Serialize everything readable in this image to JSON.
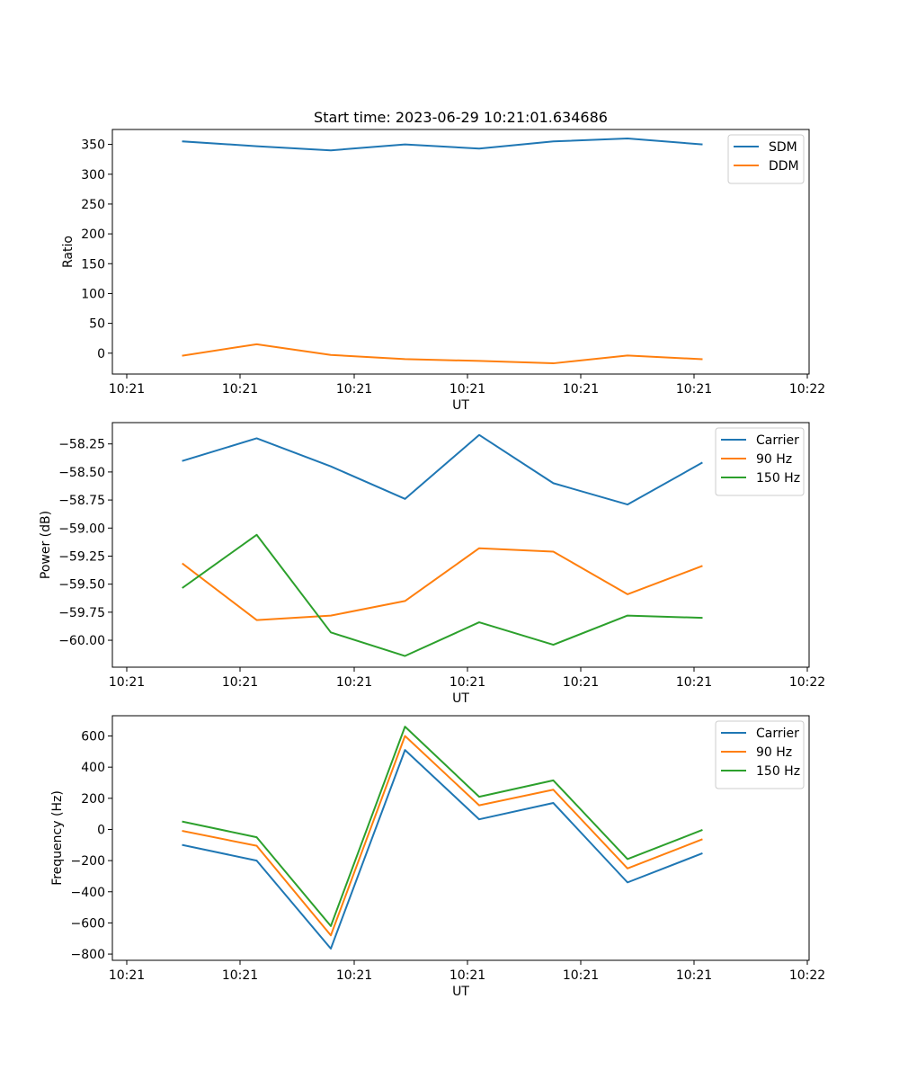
{
  "figure": {
    "title": "Start time: 2023-06-29 10:21:01.634686"
  },
  "colors": {
    "blue": "#1f77b4",
    "orange": "#ff7f0e",
    "green": "#2ca02c"
  },
  "chart_data": [
    {
      "type": "line",
      "title": "Start time: 2023-06-29 10:21:01.634686",
      "xlabel": "UT",
      "ylabel": "Ratio",
      "x_ticks": [
        "10:21",
        "10:21",
        "10:21",
        "10:21",
        "10:21",
        "10:21",
        "10:22"
      ],
      "ylim": [
        -35,
        375
      ],
      "yticks": [
        0,
        50,
        100,
        150,
        200,
        250,
        300,
        350
      ],
      "legend_position": "top-right",
      "grid": false,
      "series": [
        {
          "name": "SDM",
          "color": "#1f77b4",
          "values": [
            355,
            347,
            340,
            350,
            343,
            355,
            360,
            350
          ]
        },
        {
          "name": "DDM",
          "color": "#ff7f0e",
          "values": [
            -4,
            15,
            -3,
            -10,
            -13,
            -17,
            -4,
            -10
          ]
        }
      ]
    },
    {
      "type": "line",
      "title": "",
      "xlabel": "UT",
      "ylabel": "Power (dB)",
      "x_ticks": [
        "10:21",
        "10:21",
        "10:21",
        "10:21",
        "10:21",
        "10:21",
        "10:22"
      ],
      "ylim": [
        -60.24,
        -58.06
      ],
      "yticks": [
        -58.25,
        -58.5,
        -58.75,
        -59.0,
        -59.25,
        -59.5,
        -59.75,
        -60.0
      ],
      "ytick_labels": [
        "−58.25",
        "−58.50",
        "−58.75",
        "−59.00",
        "−59.25",
        "−59.50",
        "−59.75",
        "−60.00"
      ],
      "legend_position": "top-right",
      "grid": false,
      "series": [
        {
          "name": "Carrier",
          "color": "#1f77b4",
          "values": [
            -58.4,
            -58.2,
            -58.45,
            -58.74,
            -58.17,
            -58.6,
            -58.79,
            -58.42
          ]
        },
        {
          "name": "90 Hz",
          "color": "#ff7f0e",
          "values": [
            -59.32,
            -59.82,
            -59.78,
            -59.65,
            -59.18,
            -59.21,
            -59.59,
            -59.34
          ]
        },
        {
          "name": "150 Hz",
          "color": "#2ca02c",
          "values": [
            -59.53,
            -59.06,
            -59.93,
            -60.14,
            -59.84,
            -60.04,
            -59.78,
            -59.8
          ]
        }
      ]
    },
    {
      "type": "line",
      "title": "",
      "xlabel": "UT",
      "ylabel": "Frequency (Hz)",
      "x_ticks": [
        "10:21",
        "10:21",
        "10:21",
        "10:21",
        "10:21",
        "10:21",
        "10:22"
      ],
      "ylim": [
        -840,
        730
      ],
      "yticks": [
        600,
        400,
        200,
        0,
        -200,
        -400,
        -600,
        -800
      ],
      "ytick_labels": [
        "600",
        "400",
        "200",
        "0",
        "−200",
        "−400",
        "−600",
        "−800"
      ],
      "legend_position": "top-right",
      "grid": false,
      "series": [
        {
          "name": "Carrier",
          "color": "#1f77b4",
          "values": [
            -100,
            -200,
            -765,
            510,
            65,
            170,
            -340,
            -155
          ]
        },
        {
          "name": "90 Hz",
          "color": "#ff7f0e",
          "values": [
            -10,
            -105,
            -680,
            600,
            155,
            255,
            -250,
            -65
          ]
        },
        {
          "name": "150 Hz",
          "color": "#2ca02c",
          "values": [
            50,
            -50,
            -620,
            660,
            210,
            315,
            -190,
            -5
          ]
        }
      ]
    }
  ]
}
